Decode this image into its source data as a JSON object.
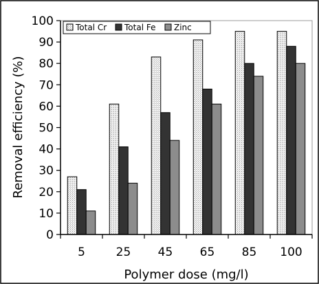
{
  "chart_data": {
    "type": "bar",
    "title": "",
    "xlabel": "Polymer dose (mg/l)",
    "ylabel": "Removal efficiency (%)",
    "categories": [
      "5",
      "25",
      "45",
      "65",
      "85",
      "100"
    ],
    "ylim": [
      0,
      100
    ],
    "yticks": [
      0,
      10,
      20,
      30,
      40,
      50,
      60,
      70,
      80,
      90,
      100
    ],
    "grid": false,
    "legend_position": "top-left",
    "series": [
      {
        "name": "Total Cr",
        "values": [
          27,
          61,
          83,
          91,
          95,
          95
        ],
        "color": "#e6e6e6",
        "pattern": "dotted-light"
      },
      {
        "name": "Total Fe",
        "values": [
          21,
          41,
          57,
          68,
          80,
          88
        ],
        "color": "#333333",
        "pattern": "dark"
      },
      {
        "name": "Zinc",
        "values": [
          11,
          24,
          44,
          61,
          74,
          80
        ],
        "color": "#8c8c8c",
        "pattern": "medium"
      }
    ]
  }
}
